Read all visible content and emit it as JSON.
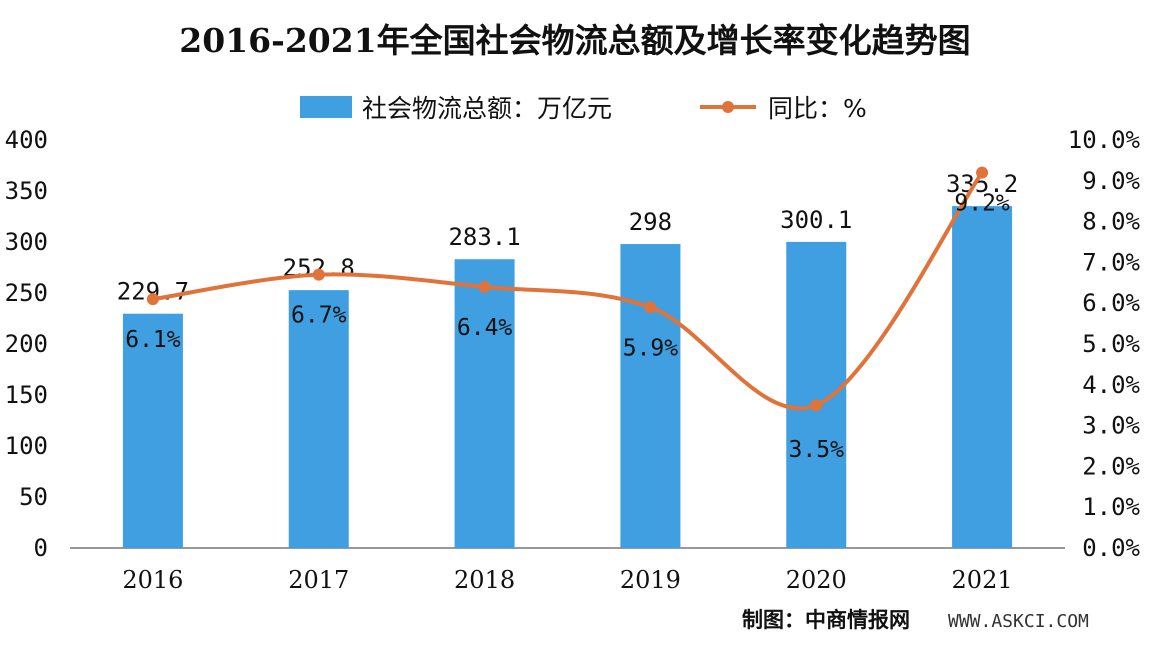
{
  "chart_data": {
    "type": "bar",
    "title": "2016-2021年全国社会物流总额及增长率变化趋势图",
    "categories": [
      "2016",
      "2017",
      "2018",
      "2019",
      "2020",
      "2021"
    ],
    "series": [
      {
        "name": "社会物流总额：万亿元",
        "type": "bar",
        "axis": "left",
        "values": [
          229.7,
          252.8,
          283.1,
          298,
          300.1,
          335.2
        ],
        "labels": [
          "229.7",
          "252.8",
          "283.1",
          "298",
          "300.1",
          "335.2"
        ]
      },
      {
        "name": "同比：%",
        "type": "line",
        "axis": "right",
        "values": [
          6.1,
          6.7,
          6.4,
          5.9,
          3.5,
          9.2
        ],
        "labels": [
          "6.1%",
          "6.7%",
          "6.4%",
          "5.9%",
          "3.5%",
          "9.2%"
        ]
      }
    ],
    "y_left": {
      "min": 0,
      "max": 400,
      "ticks": [
        "0",
        "50",
        "100",
        "150",
        "200",
        "250",
        "300",
        "350",
        "400"
      ]
    },
    "y_right": {
      "min": 0,
      "max": 10,
      "ticks": [
        "0.0%",
        "1.0%",
        "2.0%",
        "3.0%",
        "4.0%",
        "5.0%",
        "6.0%",
        "7.0%",
        "8.0%",
        "9.0%",
        "10.0%"
      ]
    },
    "legend_position": "top",
    "grid": false,
    "colors": {
      "bar": "#3f9fe0",
      "line": "#e0733a",
      "axis": "#777777"
    }
  },
  "source": {
    "label": "制图：中商情报网",
    "url": "WWW.ASKCI.COM"
  }
}
